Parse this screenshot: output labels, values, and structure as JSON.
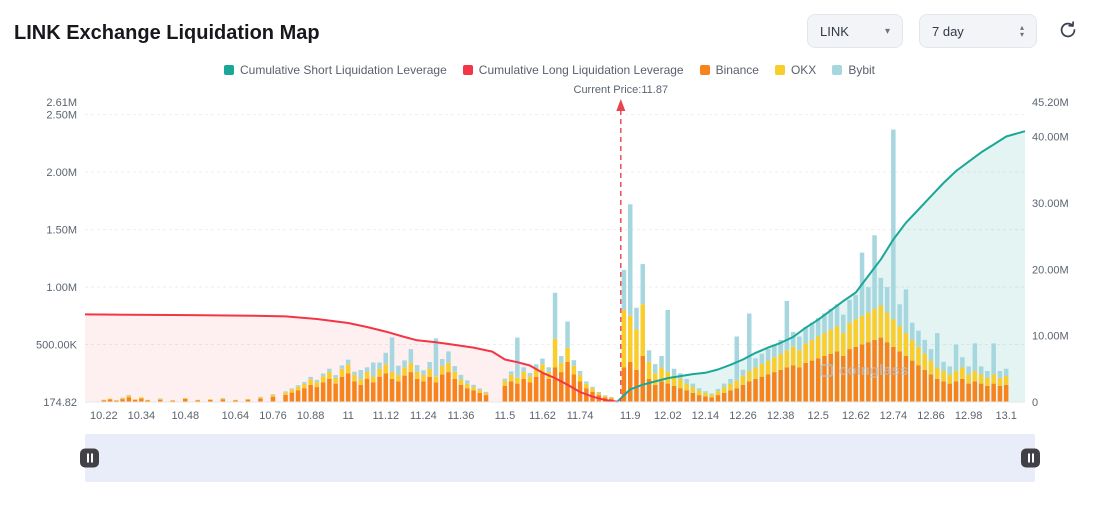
{
  "header": {
    "title": "LINK Exchange Liquidation Map"
  },
  "controls": {
    "symbol": {
      "value": "LINK"
    },
    "period": {
      "value": "7 day"
    }
  },
  "legend": [
    {
      "label": "Cumulative Short Liquidation Leverage",
      "color": "#1ba797"
    },
    {
      "label": "Cumulative Long Liquidation Leverage",
      "color": "#f23645"
    },
    {
      "label": "Binance",
      "color": "#f7831d"
    },
    {
      "label": "OKX",
      "color": "#f9cd2b"
    },
    {
      "label": "Bybit",
      "color": "#a6d7de"
    }
  ],
  "watermark": {
    "text": "coinglass"
  },
  "chart_data": {
    "type": "bar",
    "stacked": true,
    "title": "LINK Exchange Liquidation Map",
    "current_price": 11.87,
    "current_price_label": "Current Price:11.87",
    "x_domain": [
      10.16,
      13.16
    ],
    "bar_width": 4.5,
    "bars_unit": "thousand",
    "lines_unit": "million",
    "colors": {
      "binance": "#f7831d",
      "okx": "#f9cd2b",
      "bybit": "#a6d7de",
      "short": "#1ba797",
      "long": "#f23645",
      "short_fill": "rgba(27,167,151,0.12)",
      "long_fill": "rgba(242,54,69,0.08)"
    },
    "left_axis": {
      "max_k": 2610,
      "ticks": [
        [
          "2.61M",
          2610
        ],
        [
          "2.50M",
          2500
        ],
        [
          "2.00M",
          2000
        ],
        [
          "1.50M",
          1500
        ],
        [
          "1.00M",
          1000
        ],
        [
          "500.00K",
          500
        ],
        [
          "174.82",
          0
        ]
      ]
    },
    "right_axis": {
      "max_m": 45.2,
      "ticks": [
        [
          "45.20M",
          45.2
        ],
        [
          "40.00M",
          40
        ],
        [
          "30.00M",
          30
        ],
        [
          "20.00M",
          20
        ],
        [
          "10.00M",
          10
        ],
        [
          "0",
          0
        ]
      ]
    },
    "x_tick_labels": [
      "10.22",
      "10.34",
      "10.48",
      "10.64",
      "10.76",
      "10.88",
      "11",
      "11.12",
      "11.24",
      "11.36",
      "11.5",
      "11.62",
      "11.74",
      "11.9",
      "12.02",
      "12.14",
      "12.26",
      "12.38",
      "12.5",
      "12.62",
      "12.74",
      "12.86",
      "12.98",
      "13.1"
    ],
    "bars": [
      [
        10.22,
        15,
        5,
        0
      ],
      [
        10.24,
        22,
        8,
        0
      ],
      [
        10.26,
        12,
        4,
        0
      ],
      [
        10.28,
        25,
        9,
        4
      ],
      [
        10.3,
        42,
        14,
        6
      ],
      [
        10.32,
        18,
        6,
        0
      ],
      [
        10.34,
        30,
        10,
        0
      ],
      [
        10.36,
        14,
        5,
        0
      ],
      [
        10.4,
        20,
        7,
        4
      ],
      [
        10.44,
        12,
        4,
        0
      ],
      [
        10.48,
        26,
        8,
        0
      ],
      [
        10.52,
        14,
        5,
        0
      ],
      [
        10.56,
        18,
        6,
        0
      ],
      [
        10.6,
        22,
        8,
        4
      ],
      [
        10.64,
        14,
        5,
        0
      ],
      [
        10.68,
        20,
        7,
        0
      ],
      [
        10.72,
        30,
        10,
        5
      ],
      [
        10.76,
        46,
        15,
        6
      ],
      [
        10.8,
        62,
        20,
        10
      ],
      [
        10.82,
        82,
        26,
        10
      ],
      [
        10.84,
        100,
        32,
        14
      ],
      [
        10.86,
        120,
        38,
        16
      ],
      [
        10.88,
        150,
        48,
        20
      ],
      [
        10.9,
        130,
        42,
        20
      ],
      [
        10.92,
        170,
        54,
        24
      ],
      [
        10.94,
        200,
        62,
        28
      ],
      [
        10.96,
        160,
        50,
        24
      ],
      [
        10.98,
        220,
        68,
        30
      ],
      [
        11,
        250,
        78,
        40
      ],
      [
        11.02,
        180,
        56,
        28
      ],
      [
        11.04,
        150,
        48,
        80
      ],
      [
        11.06,
        200,
        62,
        40
      ],
      [
        11.08,
        170,
        54,
        120
      ],
      [
        11.1,
        220,
        68,
        56
      ],
      [
        11.12,
        250,
        78,
        100
      ],
      [
        11.14,
        200,
        62,
        300
      ],
      [
        11.16,
        180,
        56,
        80
      ],
      [
        11.18,
        230,
        72,
        60
      ],
      [
        11.2,
        260,
        80,
        120
      ],
      [
        11.22,
        200,
        62,
        60
      ],
      [
        11.24,
        180,
        56,
        40
      ],
      [
        11.26,
        220,
        68,
        60
      ],
      [
        11.28,
        170,
        54,
        330
      ],
      [
        11.3,
        240,
        74,
        60
      ],
      [
        11.32,
        260,
        80,
        100
      ],
      [
        11.34,
        200,
        62,
        50
      ],
      [
        11.36,
        150,
        46,
        40
      ],
      [
        11.38,
        120,
        38,
        30
      ],
      [
        11.4,
        100,
        30,
        20
      ],
      [
        11.42,
        80,
        24,
        14
      ],
      [
        11.44,
        60,
        18,
        10
      ],
      [
        11.5,
        140,
        44,
        20
      ],
      [
        11.52,
        180,
        56,
        30
      ],
      [
        11.54,
        160,
        50,
        350
      ],
      [
        11.56,
        200,
        62,
        40
      ],
      [
        11.58,
        170,
        52,
        30
      ],
      [
        11.6,
        220,
        68,
        40
      ],
      [
        11.62,
        250,
        78,
        50
      ],
      [
        11.64,
        200,
        62,
        40
      ],
      [
        11.66,
        300,
        250,
        400
      ],
      [
        11.68,
        260,
        80,
        60
      ],
      [
        11.7,
        350,
        120,
        230
      ],
      [
        11.72,
        240,
        74,
        50
      ],
      [
        11.74,
        180,
        56,
        34
      ],
      [
        11.76,
        120,
        38,
        20
      ],
      [
        11.78,
        90,
        28,
        14
      ],
      [
        11.8,
        60,
        18,
        10
      ],
      [
        11.82,
        40,
        12,
        6
      ],
      [
        11.84,
        30,
        10,
        4
      ],
      [
        11.88,
        300,
        500,
        350
      ],
      [
        11.9,
        350,
        400,
        970
      ],
      [
        11.92,
        280,
        350,
        190
      ],
      [
        11.94,
        400,
        450,
        350
      ],
      [
        11.96,
        200,
        150,
        100
      ],
      [
        11.98,
        150,
        100,
        80
      ],
      [
        12,
        180,
        120,
        100
      ],
      [
        12.02,
        160,
        100,
        540
      ],
      [
        12.04,
        140,
        90,
        60
      ],
      [
        12.06,
        120,
        80,
        50
      ],
      [
        12.08,
        100,
        60,
        40
      ],
      [
        12.1,
        80,
        50,
        30
      ],
      [
        12.12,
        60,
        40,
        20
      ],
      [
        12.14,
        50,
        30,
        14
      ],
      [
        12.16,
        40,
        24,
        10
      ],
      [
        12.18,
        60,
        34,
        20
      ],
      [
        12.2,
        80,
        50,
        30
      ],
      [
        12.22,
        100,
        60,
        40
      ],
      [
        12.24,
        120,
        70,
        380
      ],
      [
        12.26,
        150,
        80,
        50
      ],
      [
        12.28,
        180,
        90,
        500
      ],
      [
        12.3,
        200,
        100,
        80
      ],
      [
        12.32,
        220,
        110,
        90
      ],
      [
        12.34,
        240,
        120,
        100
      ],
      [
        12.36,
        260,
        130,
        110
      ],
      [
        12.38,
        280,
        140,
        120
      ],
      [
        12.4,
        300,
        150,
        430
      ],
      [
        12.42,
        320,
        160,
        130
      ],
      [
        12.44,
        300,
        150,
        120
      ],
      [
        12.46,
        340,
        170,
        140
      ],
      [
        12.48,
        360,
        180,
        150
      ],
      [
        12.5,
        380,
        190,
        160
      ],
      [
        12.52,
        400,
        200,
        170
      ],
      [
        12.54,
        420,
        210,
        180
      ],
      [
        12.56,
        440,
        220,
        190
      ],
      [
        12.58,
        400,
        200,
        160
      ],
      [
        12.6,
        460,
        230,
        200
      ],
      [
        12.62,
        480,
        240,
        210
      ],
      [
        12.64,
        500,
        250,
        550
      ],
      [
        12.66,
        520,
        260,
        220
      ],
      [
        12.68,
        540,
        270,
        640
      ],
      [
        12.7,
        560,
        280,
        240
      ],
      [
        12.72,
        520,
        260,
        220
      ],
      [
        12.74,
        480,
        240,
        1650
      ],
      [
        12.76,
        440,
        220,
        190
      ],
      [
        12.78,
        400,
        200,
        380
      ],
      [
        12.8,
        360,
        180,
        150
      ],
      [
        12.82,
        320,
        160,
        140
      ],
      [
        12.84,
        280,
        140,
        120
      ],
      [
        12.86,
        240,
        120,
        100
      ],
      [
        12.88,
        200,
        100,
        300
      ],
      [
        12.9,
        180,
        90,
        80
      ],
      [
        12.92,
        160,
        80,
        70
      ],
      [
        12.94,
        180,
        90,
        230
      ],
      [
        12.96,
        200,
        100,
        90
      ],
      [
        12.98,
        160,
        80,
        70
      ],
      [
        13,
        180,
        90,
        240
      ],
      [
        13.02,
        160,
        80,
        70
      ],
      [
        13.04,
        140,
        70,
        60
      ],
      [
        13.06,
        160,
        80,
        270
      ],
      [
        13.08,
        140,
        70,
        60
      ],
      [
        13.1,
        150,
        75,
        65
      ]
    ],
    "lines": {
      "long": {
        "name": "Cumulative Long Liquidation Leverage",
        "points": [
          [
            10.16,
            13.2
          ],
          [
            10.3,
            13.15
          ],
          [
            10.5,
            13.1
          ],
          [
            10.7,
            13.0
          ],
          [
            10.8,
            12.9
          ],
          [
            10.9,
            12.5
          ],
          [
            11.0,
            11.9
          ],
          [
            11.06,
            11.3
          ],
          [
            11.12,
            10.6
          ],
          [
            11.18,
            9.8
          ],
          [
            11.22,
            9.3
          ],
          [
            11.28,
            9.0
          ],
          [
            11.34,
            8.6
          ],
          [
            11.4,
            8.2
          ],
          [
            11.46,
            7.6
          ],
          [
            11.5,
            6.4
          ],
          [
            11.54,
            6.0
          ],
          [
            11.58,
            5.5
          ],
          [
            11.62,
            4.4
          ],
          [
            11.66,
            3.6
          ],
          [
            11.7,
            2.6
          ],
          [
            11.74,
            1.5
          ],
          [
            11.78,
            0.8
          ],
          [
            11.82,
            0.3
          ],
          [
            11.86,
            0.05
          ]
        ]
      },
      "short": {
        "name": "Cumulative Short Liquidation Leverage",
        "points": [
          [
            11.86,
            0.1
          ],
          [
            11.9,
            1.9
          ],
          [
            11.94,
            2.6
          ],
          [
            11.98,
            3.1
          ],
          [
            12.02,
            3.6
          ],
          [
            12.06,
            3.9
          ],
          [
            12.1,
            4.2
          ],
          [
            12.14,
            4.4
          ],
          [
            12.18,
            4.9
          ],
          [
            12.22,
            5.6
          ],
          [
            12.26,
            6.4
          ],
          [
            12.3,
            7.4
          ],
          [
            12.34,
            8.2
          ],
          [
            12.38,
            8.9
          ],
          [
            12.42,
            9.8
          ],
          [
            12.46,
            11.2
          ],
          [
            12.5,
            12.4
          ],
          [
            12.54,
            13.8
          ],
          [
            12.58,
            15.2
          ],
          [
            12.62,
            16.5
          ],
          [
            12.66,
            19
          ],
          [
            12.7,
            21.5
          ],
          [
            12.74,
            24.5
          ],
          [
            12.78,
            27
          ],
          [
            12.82,
            29
          ],
          [
            12.86,
            31
          ],
          [
            12.9,
            33
          ],
          [
            12.94,
            34.8
          ],
          [
            12.98,
            36.2
          ],
          [
            13.02,
            37.6
          ],
          [
            13.06,
            38.8
          ],
          [
            13.1,
            40
          ],
          [
            13.16,
            40.8
          ]
        ]
      }
    }
  }
}
